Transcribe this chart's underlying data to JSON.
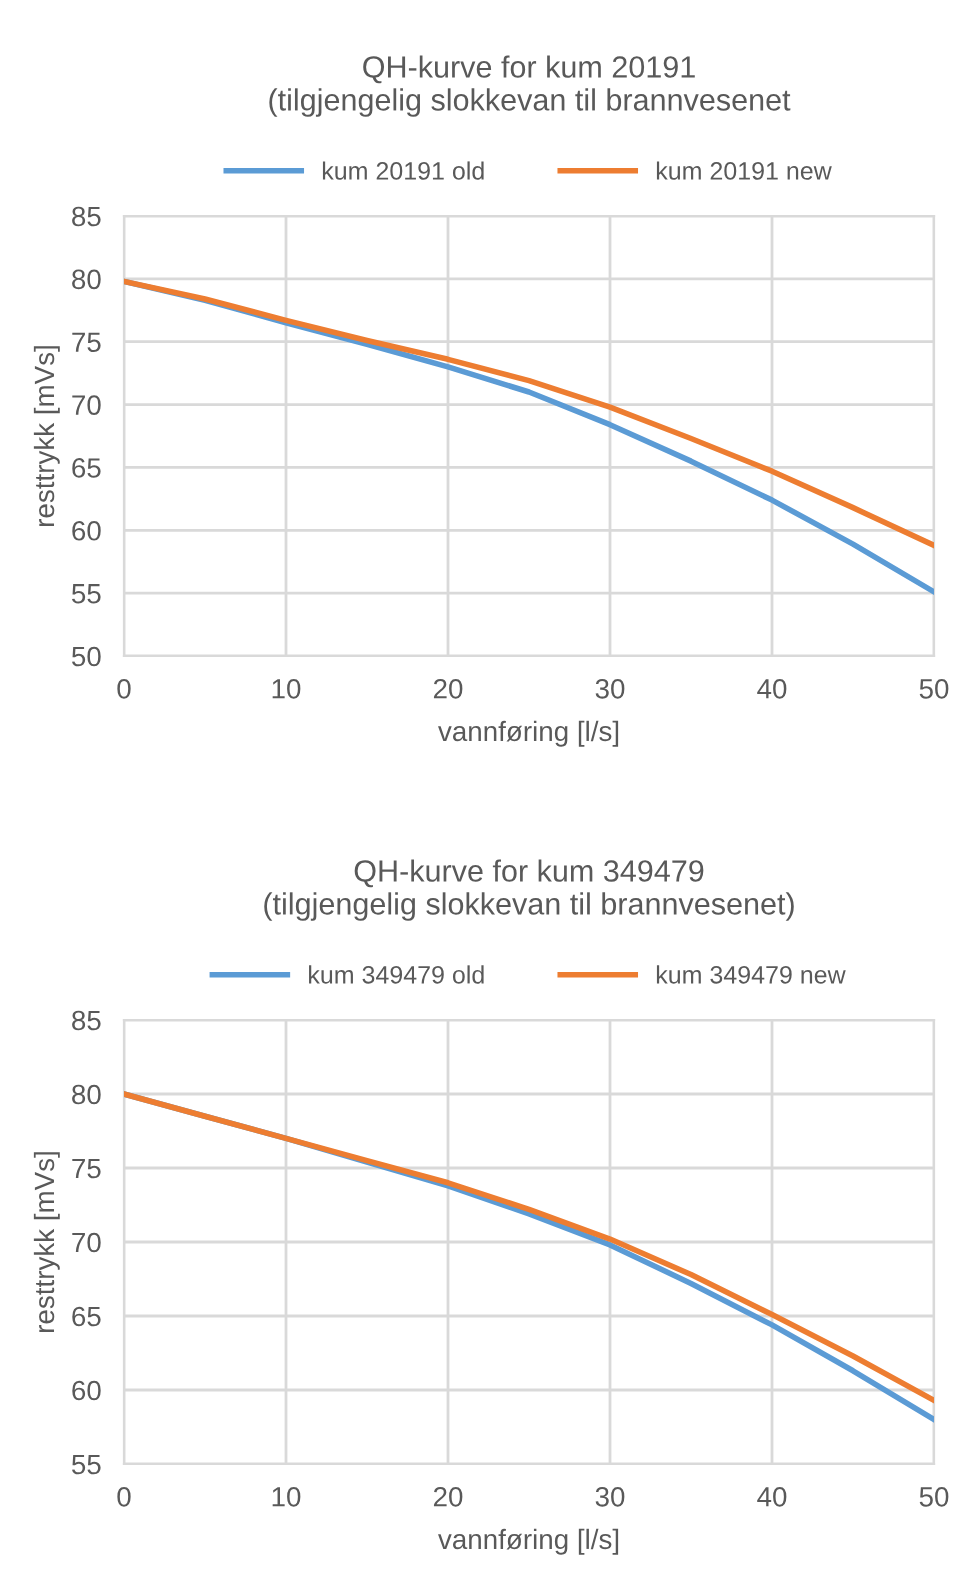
{
  "chart_data": [
    {
      "type": "line",
      "title": "QH-kurve for kum 20191\n(tilgjengelig slokkevan til brannvesenet",
      "xlabel": "vannføring [l/s]",
      "ylabel": "resttrykk [mVs]",
      "x": [
        0,
        5,
        10,
        15,
        20,
        25,
        30,
        35,
        40,
        45,
        50
      ],
      "series": [
        {
          "name": "kum 20191 old",
          "color": "#5b9bd5",
          "values": [
            79.8,
            78.3,
            76.5,
            74.8,
            73.0,
            71.0,
            68.4,
            65.5,
            62.4,
            58.9,
            55.1
          ]
        },
        {
          "name": "kum 20191 new",
          "color": "#ed7d31",
          "values": [
            79.8,
            78.4,
            76.7,
            75.1,
            73.6,
            71.9,
            69.8,
            67.3,
            64.7,
            61.8,
            58.8
          ]
        }
      ],
      "xlim": [
        0,
        50
      ],
      "xticks": [
        0,
        10,
        20,
        30,
        40,
        50
      ],
      "ylim": [
        50,
        85
      ],
      "yticks": [
        50,
        55,
        60,
        65,
        70,
        75,
        80,
        85
      ],
      "grid": true,
      "legend": "top",
      "marker": "none",
      "line_style": "solid"
    },
    {
      "type": "line",
      "title": "QH-kurve for kum 349479\n(tilgjengelig slokkevan til brannvesenet)",
      "xlabel": "vannføring [l/s]",
      "ylabel": "resttrykk [mVs]",
      "x": [
        0,
        5,
        10,
        15,
        20,
        25,
        30,
        35,
        40,
        45,
        50
      ],
      "series": [
        {
          "name": "kum 349479 old",
          "color": "#5b9bd5",
          "values": [
            80.0,
            78.5,
            77.0,
            75.4,
            73.8,
            71.9,
            69.8,
            67.2,
            64.4,
            61.3,
            58.0
          ]
        },
        {
          "name": "kum 349479 new",
          "color": "#ed7d31",
          "values": [
            80.0,
            78.5,
            77.0,
            75.5,
            74.0,
            72.2,
            70.2,
            67.8,
            65.1,
            62.3,
            59.3
          ]
        }
      ],
      "xlim": [
        0,
        50
      ],
      "xticks": [
        0,
        10,
        20,
        30,
        40,
        50
      ],
      "ylim": [
        55,
        85
      ],
      "yticks": [
        55,
        60,
        65,
        70,
        75,
        80,
        85
      ],
      "grid": true,
      "legend": "top",
      "marker": "none",
      "line_style": "solid"
    }
  ]
}
